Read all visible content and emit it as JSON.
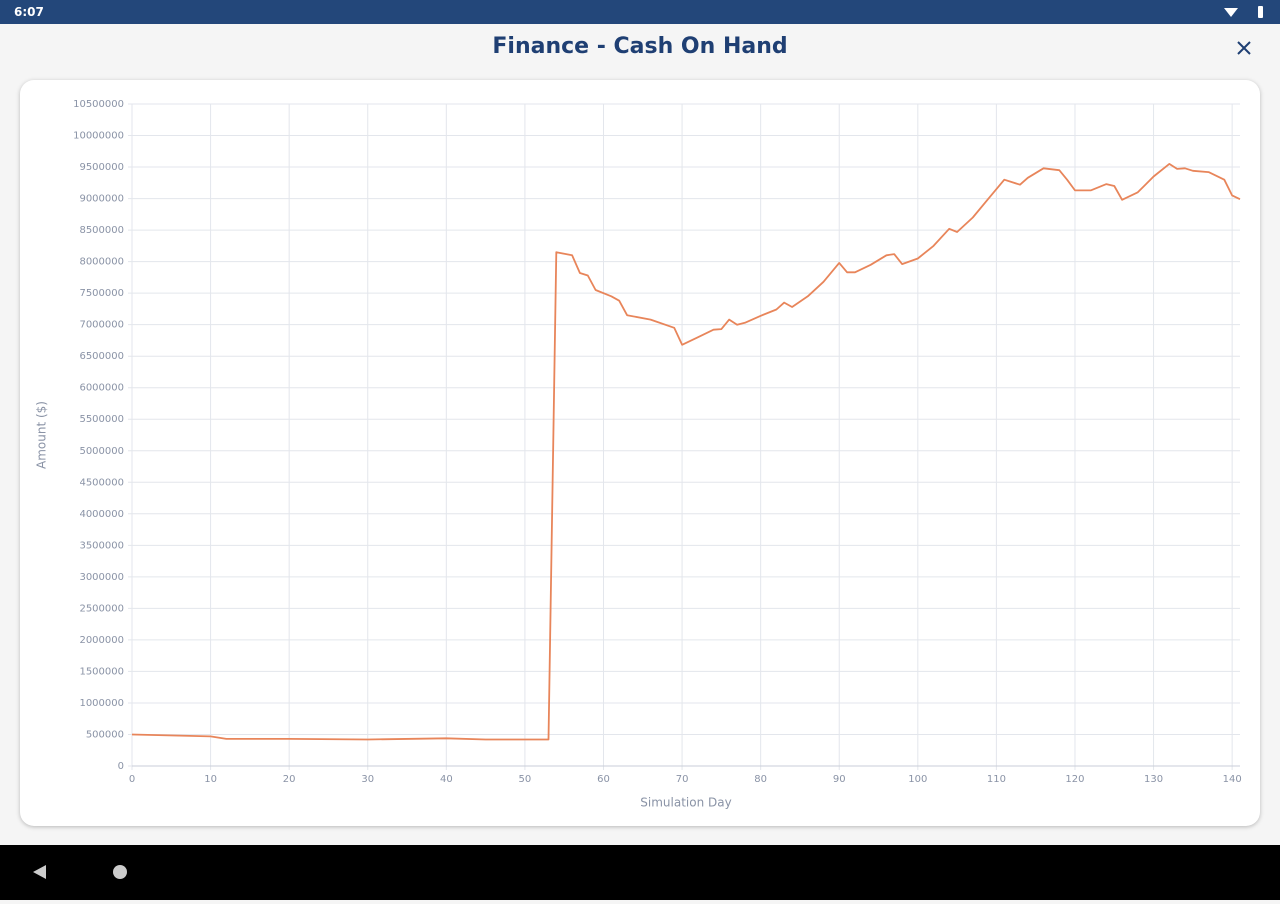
{
  "status_bar": {
    "time": "6:07"
  },
  "header": {
    "title": "Finance - Cash On Hand"
  },
  "chart_data": {
    "type": "line",
    "xlabel": "Simulation Day",
    "ylabel": "Amount ($)",
    "color": "#e8855a",
    "grid": true,
    "xlim": [
      0,
      141
    ],
    "xticks": [
      0,
      10,
      20,
      30,
      40,
      50,
      60,
      70,
      80,
      90,
      100,
      110,
      120,
      130,
      140
    ],
    "ylim": [
      0,
      10500000
    ],
    "yticks": [
      0,
      500000,
      1000000,
      1500000,
      2000000,
      2500000,
      3000000,
      3500000,
      4000000,
      4500000,
      5000000,
      5500000,
      6000000,
      6500000,
      7000000,
      7500000,
      8000000,
      8500000,
      9000000,
      9500000,
      10000000,
      10500000
    ],
    "x": [
      0,
      10,
      12,
      20,
      30,
      40,
      45,
      53,
      54,
      56,
      57,
      58,
      59,
      61,
      62,
      63,
      66,
      69,
      70,
      72,
      74,
      75,
      76,
      77,
      78,
      80,
      82,
      83,
      84,
      86,
      88,
      90,
      91,
      92,
      94,
      96,
      97,
      98,
      100,
      102,
      104,
      105,
      107,
      109,
      111,
      113,
      114,
      116,
      118,
      119,
      120,
      122,
      124,
      125,
      126,
      128,
      130,
      132,
      133,
      134,
      135,
      137,
      139,
      140,
      141
    ],
    "values": [
      500000,
      470000,
      430000,
      430000,
      420000,
      440000,
      420000,
      420000,
      8150000,
      8100000,
      7820000,
      7780000,
      7550000,
      7450000,
      7380000,
      7150000,
      7080000,
      6950000,
      6680000,
      6800000,
      6920000,
      6930000,
      7080000,
      7000000,
      7030000,
      7140000,
      7240000,
      7350000,
      7280000,
      7450000,
      7680000,
      7980000,
      7830000,
      7830000,
      7950000,
      8100000,
      8120000,
      7960000,
      8050000,
      8250000,
      8520000,
      8470000,
      8700000,
      9000000,
      9300000,
      9220000,
      9330000,
      9480000,
      9450000,
      9300000,
      9130000,
      9130000,
      9230000,
      9200000,
      8980000,
      9100000,
      9350000,
      9550000,
      9470000,
      9480000,
      9440000,
      9420000,
      9300000,
      9050000,
      8990000
    ]
  }
}
